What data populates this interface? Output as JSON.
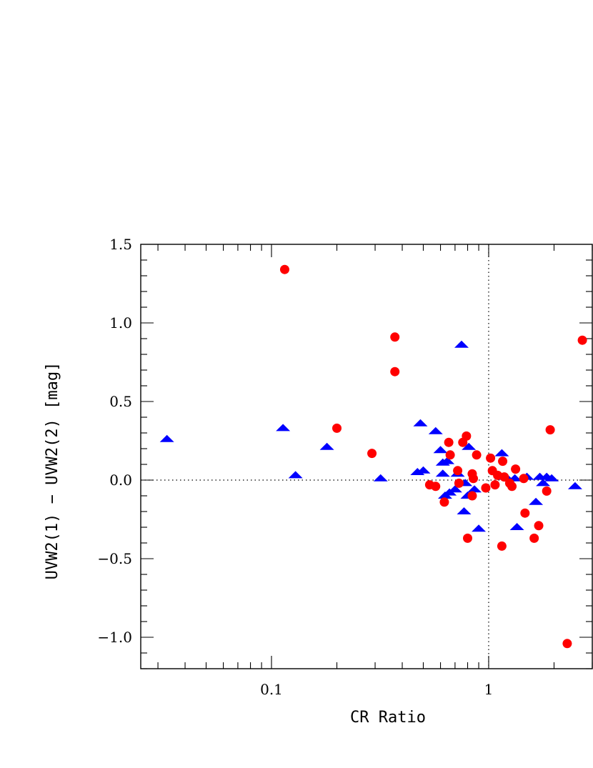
{
  "chart_data": {
    "type": "scatter",
    "title": "",
    "xlabel": "CR Ratio",
    "ylabel": "UVW2(1) − UVW2(2) [mag]",
    "xscale": "log",
    "xlim": [
      0.025,
      3.0
    ],
    "ylim": [
      -1.2,
      1.5
    ],
    "x_tick_labels": [
      {
        "value": 0.1,
        "label": "0.1"
      },
      {
        "value": 1,
        "label": "1"
      }
    ],
    "y_tick_labels": [
      {
        "value": 1.5,
        "label": "1.5"
      },
      {
        "value": 1.0,
        "label": "1.0"
      },
      {
        "value": 0.5,
        "label": "0.5"
      },
      {
        "value": 0.0,
        "label": "0.0"
      },
      {
        "value": -0.5,
        "label": "−0.5"
      },
      {
        "value": -1.0,
        "label": "−1.0"
      }
    ],
    "reference_lines": {
      "x": 1,
      "y": 0
    },
    "grid": false,
    "series": [
      {
        "marker": "triangle",
        "color": "#0000ff",
        "points": [
          [
            0.033,
            0.26
          ],
          [
            0.113,
            0.33
          ],
          [
            0.129,
            0.03
          ],
          [
            0.18,
            0.21
          ],
          [
            0.318,
            0.01
          ],
          [
            0.47,
            0.05
          ],
          [
            0.485,
            0.36
          ],
          [
            0.5,
            0.06
          ],
          [
            0.57,
            0.31
          ],
          [
            0.6,
            0.19
          ],
          [
            0.615,
            0.11
          ],
          [
            0.615,
            0.04
          ],
          [
            0.63,
            -0.1
          ],
          [
            0.645,
            0.12
          ],
          [
            0.66,
            -0.08
          ],
          [
            0.7,
            -0.06
          ],
          [
            0.72,
            0.04
          ],
          [
            0.75,
            0.86
          ],
          [
            0.77,
            -0.2
          ],
          [
            0.78,
            -0.02
          ],
          [
            0.8,
            -0.1
          ],
          [
            0.81,
            0.21
          ],
          [
            0.86,
            -0.06
          ],
          [
            0.9,
            -0.31
          ],
          [
            1.15,
            0.17
          ],
          [
            1.2,
            0.02
          ],
          [
            1.32,
            0.01
          ],
          [
            1.35,
            -0.3
          ],
          [
            1.5,
            0.02
          ],
          [
            1.65,
            -0.14
          ],
          [
            1.72,
            0.02
          ],
          [
            1.78,
            -0.02
          ],
          [
            1.85,
            0.02
          ],
          [
            1.95,
            0.01
          ],
          [
            2.5,
            -0.04
          ]
        ]
      },
      {
        "marker": "circle",
        "color": "#ff0000",
        "points": [
          [
            0.115,
            1.34
          ],
          [
            0.2,
            0.33
          ],
          [
            0.29,
            0.17
          ],
          [
            0.37,
            0.91
          ],
          [
            0.37,
            0.69
          ],
          [
            0.535,
            -0.03
          ],
          [
            0.57,
            -0.04
          ],
          [
            0.625,
            -0.14
          ],
          [
            0.655,
            0.24
          ],
          [
            0.665,
            0.16
          ],
          [
            0.72,
            0.06
          ],
          [
            0.73,
            -0.02
          ],
          [
            0.76,
            0.24
          ],
          [
            0.79,
            0.28
          ],
          [
            0.8,
            -0.37
          ],
          [
            0.84,
            0.04
          ],
          [
            0.84,
            -0.1
          ],
          [
            0.85,
            0.01
          ],
          [
            0.88,
            0.16
          ],
          [
            0.97,
            -0.05
          ],
          [
            1.02,
            0.14
          ],
          [
            1.04,
            0.06
          ],
          [
            1.07,
            -0.03
          ],
          [
            1.1,
            0.03
          ],
          [
            1.15,
            -0.42
          ],
          [
            1.16,
            0.12
          ],
          [
            1.18,
            0.02
          ],
          [
            1.25,
            -0.02
          ],
          [
            1.28,
            -0.04
          ],
          [
            1.33,
            0.07
          ],
          [
            1.45,
            0.01
          ],
          [
            1.47,
            -0.21
          ],
          [
            1.62,
            -0.37
          ],
          [
            1.7,
            -0.29
          ],
          [
            1.85,
            -0.07
          ],
          [
            1.92,
            0.32
          ],
          [
            2.3,
            -1.04
          ],
          [
            2.7,
            0.89
          ]
        ]
      }
    ]
  }
}
